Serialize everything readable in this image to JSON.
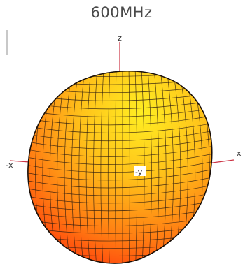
{
  "title": "600MHz",
  "axes": {
    "z": "z",
    "x_pos": "x",
    "x_neg": "-x",
    "y_neg": "-y"
  },
  "colors": {
    "pattern_top": "#ffee22",
    "pattern_mid": "#ff9a10",
    "pattern_bottom": "#ff2a0a",
    "mesh": "#2a1a10",
    "axis": "#cc3344"
  }
}
